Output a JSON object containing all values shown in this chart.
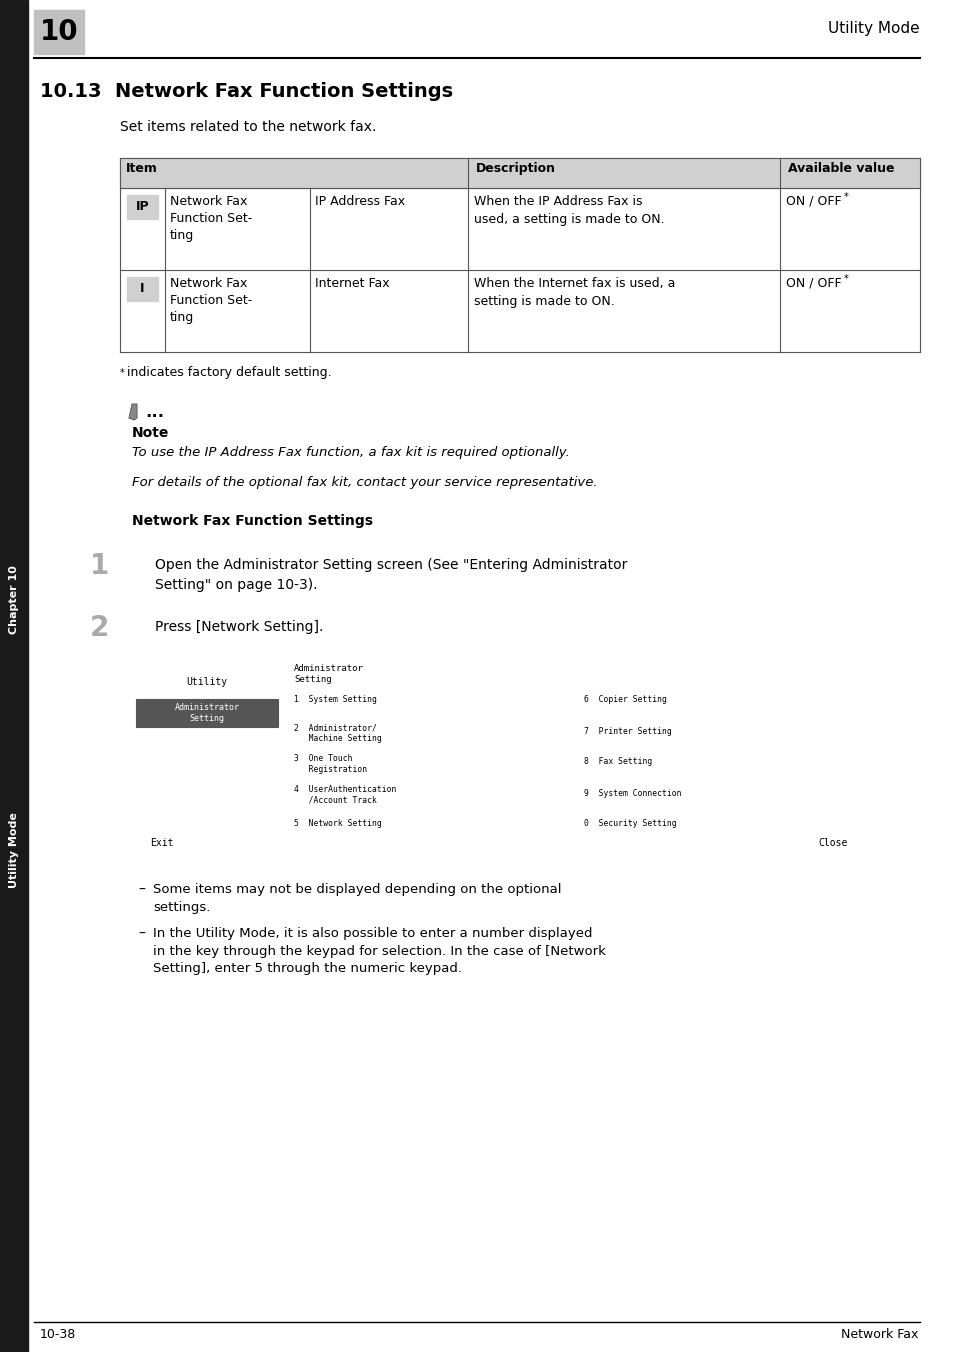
{
  "page_number_box": "10",
  "header_right": "Utility Mode",
  "section_title": "10.13  Network Fax Function Settings",
  "intro_text": "Set items related to the network fax.",
  "table_header": [
    "Item",
    "Description",
    "Available value"
  ],
  "table_rows": [
    {
      "icon": "IP",
      "item_name": "Network Fax\nFunction Set-\nting",
      "sub_item": "IP Address Fax",
      "description": "When the IP Address Fax is\nused, a setting is made to ON.",
      "value": "ON / OFF*"
    },
    {
      "icon": "I",
      "item_name": "Network Fax\nFunction Set-\nting",
      "sub_item": "Internet Fax",
      "description": "When the Internet fax is used, a\nsetting is made to ON.",
      "value": "ON / OFF*"
    }
  ],
  "footnote": "* indicates factory default setting.",
  "note_title": "Note",
  "note_lines": [
    "To use the IP Address Fax function, a fax kit is required optionally.",
    "",
    "For details of the optional fax kit, contact your service representative."
  ],
  "subsection_title": "Network Fax Function Settings",
  "step1_num": "1",
  "step1_text": "Open the Administrator Setting screen (See \"Entering Administrator\nSetting\" on page 10-3).",
  "step2_num": "2",
  "step2_text": "Press [Network Setting].",
  "bullet_points": [
    "Some items may not be displayed depending on the optional\nsettings.",
    "In the Utility Mode, it is also possible to enter a number displayed\nin the key through the keypad for selection. In the case of [Network\nSetting], enter 5 through the numeric keypad."
  ],
  "footer_left": "10-38",
  "footer_right": "Network Fax",
  "sidebar_top": "Chapter 10",
  "sidebar_bottom": "Utility Mode",
  "bg_color": "#ffffff",
  "sidebar_bg": "#1a1a1a",
  "table_header_bg": "#d0d0d0",
  "table_border_color": "#555555",
  "icon_ip_bg": "#d0d0d0",
  "icon_i_bg": "#d0d0d0"
}
